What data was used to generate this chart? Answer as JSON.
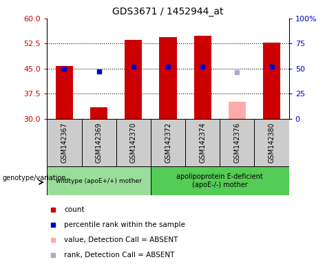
{
  "title": "GDS3671 / 1452944_at",
  "samples": [
    "GSM142367",
    "GSM142369",
    "GSM142370",
    "GSM142372",
    "GSM142374",
    "GSM142376",
    "GSM142380"
  ],
  "count_values": [
    45.8,
    33.5,
    53.5,
    54.5,
    54.8,
    null,
    52.8
  ],
  "count_absent": [
    null,
    null,
    null,
    null,
    null,
    35.2,
    null
  ],
  "rank_values": [
    45.0,
    44.2,
    45.5,
    45.5,
    45.5,
    null,
    45.5
  ],
  "rank_absent": [
    null,
    null,
    null,
    null,
    null,
    44.0,
    null
  ],
  "y_min": 30,
  "y_max": 60,
  "y_ticks": [
    30,
    37.5,
    45,
    52.5,
    60
  ],
  "y2_ticks": [
    0,
    25,
    50,
    75,
    100
  ],
  "y2_labels": [
    "0",
    "25",
    "50",
    "75",
    "100%"
  ],
  "dotted_lines": [
    37.5,
    45.0,
    52.5
  ],
  "group1_label": "wildtype (apoE+/+) mother",
  "group2_label": "apolipoprotein E-deficient\n(apoE-/-) mother",
  "genotype_label": "genotype/variation",
  "bar_color": "#CC0000",
  "bar_absent_color": "#FFAAAA",
  "rank_color": "#0000CC",
  "rank_absent_color": "#AAAACC",
  "sample_bg": "#CCCCCC",
  "group1_bg": "#99DD99",
  "group2_bg": "#55CC55",
  "axis_label_color_left": "#CC0000",
  "axis_label_color_right": "#0000CC",
  "bar_width": 0.5,
  "legend_items": [
    {
      "color": "#CC0000",
      "label": "count"
    },
    {
      "color": "#0000CC",
      "label": "percentile rank within the sample"
    },
    {
      "color": "#FFAAAA",
      "label": "value, Detection Call = ABSENT"
    },
    {
      "color": "#AAAACC",
      "label": "rank, Detection Call = ABSENT"
    }
  ]
}
